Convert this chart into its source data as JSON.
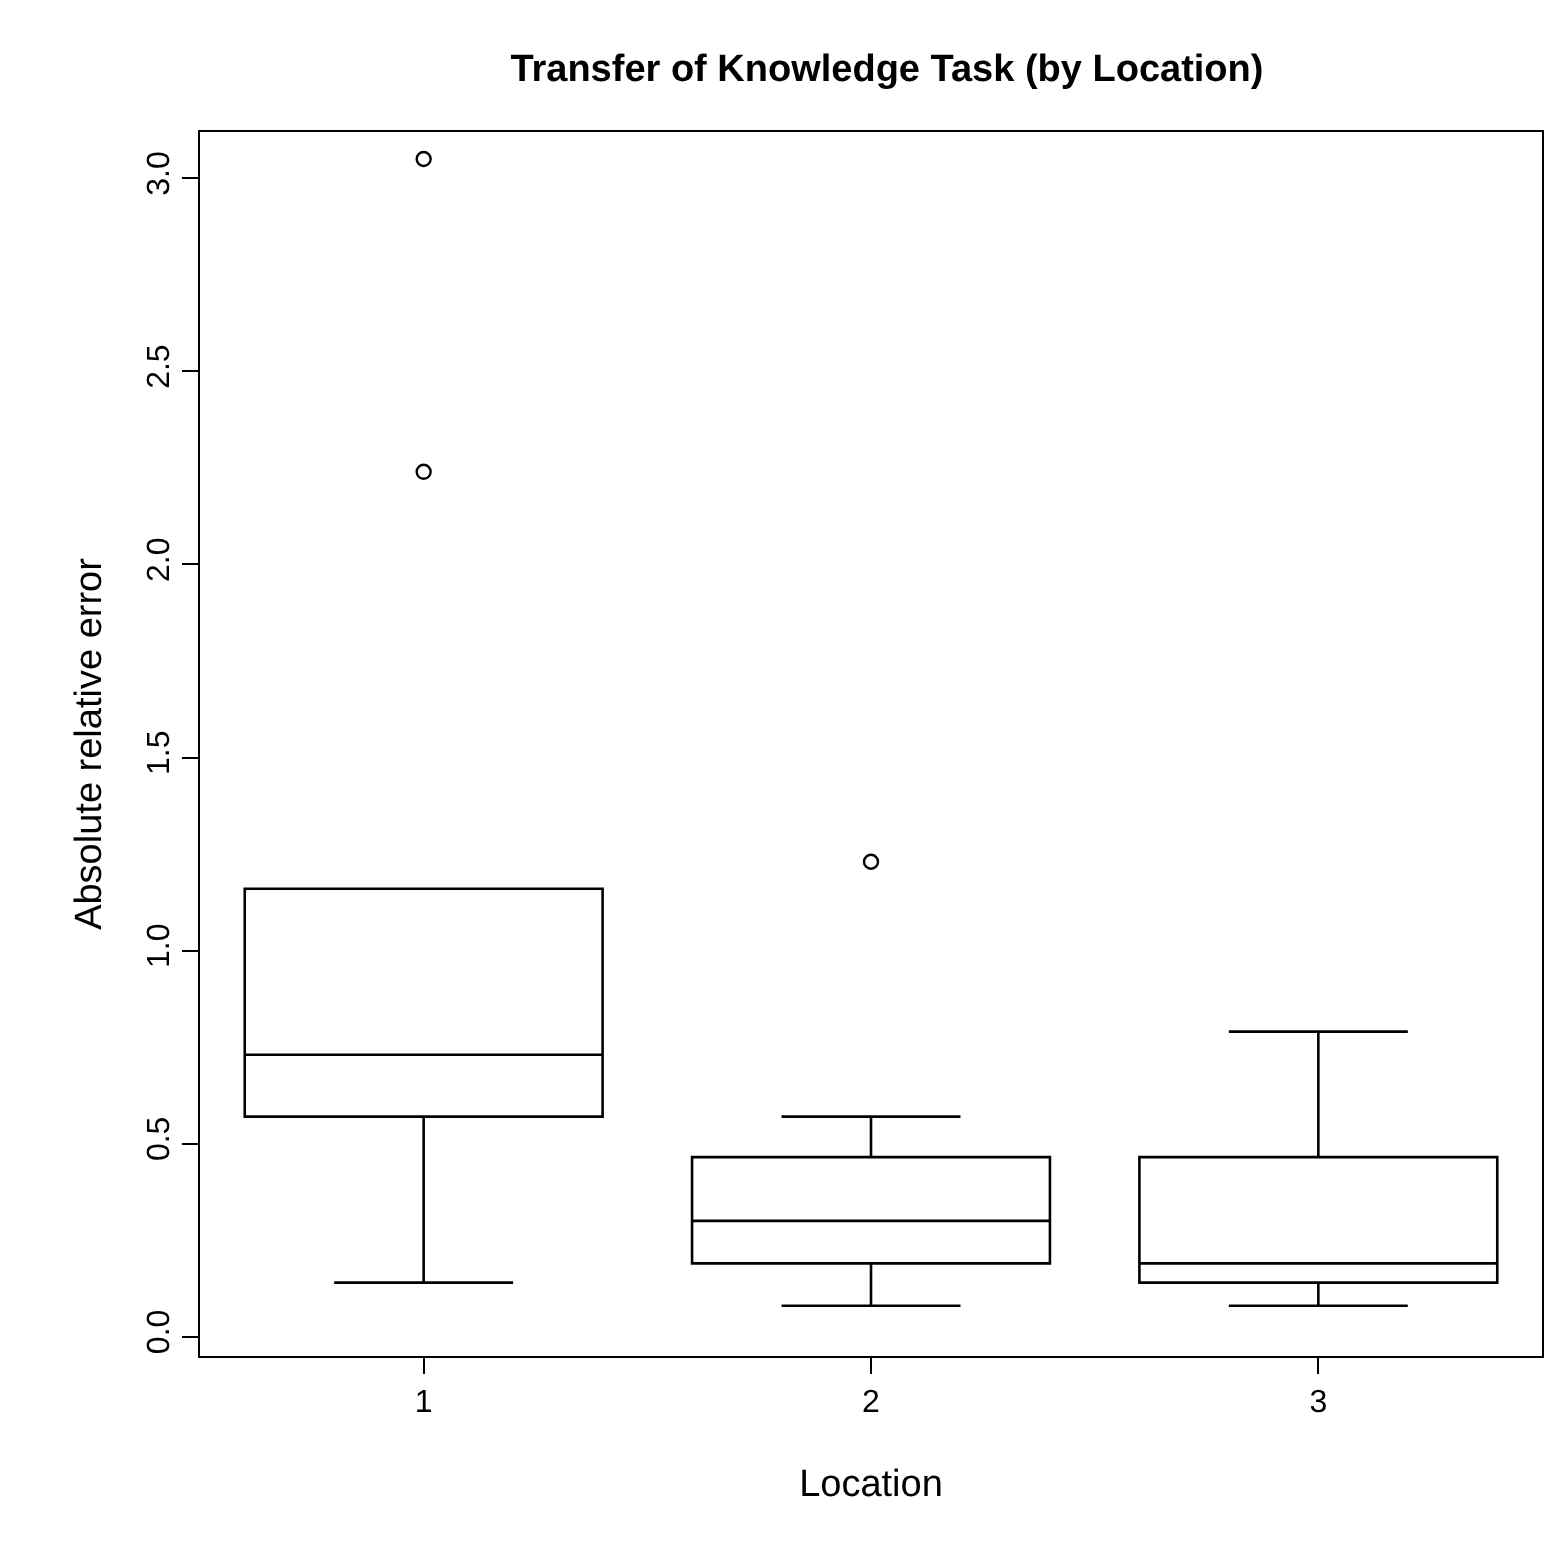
{
  "chart_data": {
    "type": "box",
    "title": "Transfer of Knowledge Task (by Location)",
    "xlabel": "Location",
    "ylabel": "Absolute relative error",
    "categories": [
      "1",
      "2",
      "3"
    ],
    "boxes": [
      {
        "low": 0.14,
        "q1": 0.57,
        "median": 0.73,
        "q3": 1.16,
        "high": 1.16,
        "outliers": [
          2.24,
          3.05
        ]
      },
      {
        "low": 0.08,
        "q1": 0.19,
        "median": 0.3,
        "q3": 0.465,
        "high": 0.57,
        "outliers": [
          1.23
        ]
      },
      {
        "low": 0.08,
        "q1": 0.14,
        "median": 0.19,
        "q3": 0.465,
        "high": 0.79
      }
    ],
    "color": "#000000",
    "ylim": [
      -0.05,
      3.12
    ],
    "yticks": [
      {
        "value": 0,
        "label": "0.0"
      },
      {
        "value": 0.5,
        "label": "0.5"
      },
      {
        "value": 1,
        "label": "1.0"
      },
      {
        "value": 1.5,
        "label": "1.5"
      },
      {
        "value": 2,
        "label": "2.0"
      },
      {
        "value": 2.5,
        "label": "2.5"
      },
      {
        "value": 3,
        "label": "3.0"
      }
    ],
    "grid": false
  }
}
